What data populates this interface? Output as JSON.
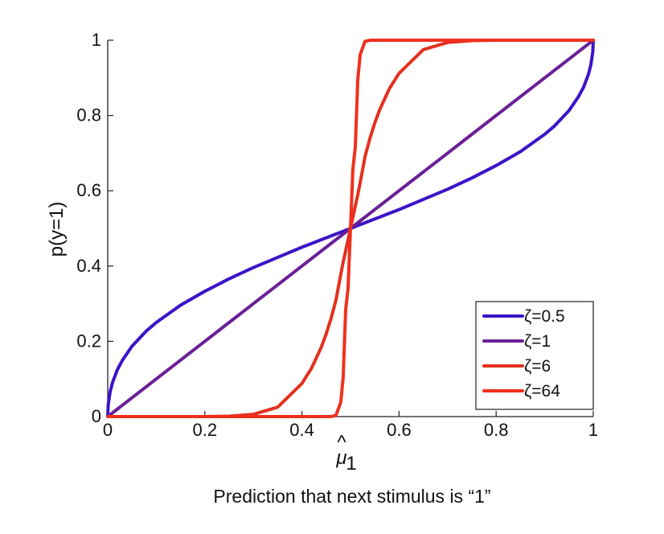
{
  "chart_data": {
    "type": "line",
    "xlabel_base": "μ",
    "xlabel_hat": "^",
    "xlabel_sub": "1",
    "ylabel": "p(y=1)",
    "caption": "Prediction that next stimulus is “1”",
    "xlim": [
      0,
      1
    ],
    "ylim": [
      0,
      1
    ],
    "xticks": [
      0,
      0.2,
      0.4,
      0.6,
      0.8,
      1
    ],
    "yticks": [
      0,
      0.2,
      0.4,
      0.6,
      0.8,
      1
    ],
    "xtick_labels": [
      "0",
      "0.2",
      "0.4",
      "0.6",
      "0.8",
      "1"
    ],
    "ytick_labels": [
      "0",
      "0.2",
      "0.4",
      "0.6",
      "0.8",
      "1"
    ],
    "grid": false,
    "legend_position": "bottom-right",
    "x": [
      0,
      0.001,
      0.005,
      0.01,
      0.02,
      0.03,
      0.05,
      0.08,
      0.1,
      0.15,
      0.2,
      0.25,
      0.3,
      0.35,
      0.4,
      0.42,
      0.44,
      0.45,
      0.46,
      0.47,
      0.48,
      0.485,
      0.49,
      0.495,
      0.5,
      0.505,
      0.51,
      0.515,
      0.52,
      0.53,
      0.54,
      0.55,
      0.56,
      0.58,
      0.6,
      0.65,
      0.7,
      0.75,
      0.8,
      0.85,
      0.9,
      0.92,
      0.95,
      0.97,
      0.98,
      0.99,
      0.995,
      0.999,
      1
    ],
    "series": [
      {
        "name": "ζ=0.5",
        "color": "#3a14c8",
        "values": [
          0,
          0.031,
          0.066,
          0.091,
          0.125,
          0.149,
          0.187,
          0.228,
          0.25,
          0.296,
          0.333,
          0.366,
          0.396,
          0.423,
          0.45,
          0.46,
          0.47,
          0.475,
          0.48,
          0.485,
          0.49,
          0.492,
          0.495,
          0.497,
          0.5,
          0.502,
          0.505,
          0.508,
          0.51,
          0.515,
          0.52,
          0.525,
          0.53,
          0.54,
          0.55,
          0.577,
          0.604,
          0.634,
          0.667,
          0.704,
          0.75,
          0.772,
          0.813,
          0.851,
          0.875,
          0.909,
          0.934,
          0.969,
          1
        ]
      },
      {
        "name": "ζ=1",
        "color": "#6a1f96",
        "values": [
          0,
          0.001,
          0.005,
          0.01,
          0.02,
          0.03,
          0.05,
          0.08,
          0.1,
          0.15,
          0.2,
          0.25,
          0.3,
          0.35,
          0.4,
          0.42,
          0.44,
          0.45,
          0.46,
          0.47,
          0.48,
          0.485,
          0.49,
          0.495,
          0.5,
          0.505,
          0.51,
          0.515,
          0.52,
          0.53,
          0.54,
          0.55,
          0.56,
          0.58,
          0.6,
          0.65,
          0.7,
          0.75,
          0.8,
          0.85,
          0.9,
          0.92,
          0.95,
          0.97,
          0.98,
          0.99,
          0.995,
          0.999,
          1
        ]
      },
      {
        "name": "ζ=6",
        "color": "#e3301e",
        "values": [
          0,
          0,
          0,
          0,
          0,
          0,
          0,
          0,
          0,
          0,
          0,
          0.001,
          0.006,
          0.025,
          0.088,
          0.129,
          0.185,
          0.22,
          0.261,
          0.309,
          0.378,
          0.411,
          0.44,
          0.47,
          0.5,
          0.53,
          0.56,
          0.589,
          0.622,
          0.691,
          0.739,
          0.78,
          0.815,
          0.871,
          0.912,
          0.975,
          0.994,
          0.999,
          1,
          1,
          1,
          1,
          1,
          1,
          1,
          1,
          1,
          1,
          1
        ]
      },
      {
        "name": "ζ=64",
        "color": "#f0301c",
        "values": [
          0,
          0,
          0,
          0,
          0,
          0,
          0,
          0,
          0,
          0,
          0,
          0,
          0,
          0,
          0,
          0,
          0,
          0,
          0,
          0.003,
          0.038,
          0.105,
          0.283,
          0.341,
          0.5,
          0.659,
          0.717,
          0.895,
          0.962,
          0.997,
          1,
          1,
          1,
          1,
          1,
          1,
          1,
          1,
          1,
          1,
          1,
          1,
          1,
          1,
          1,
          1,
          1,
          1,
          1
        ]
      }
    ]
  }
}
